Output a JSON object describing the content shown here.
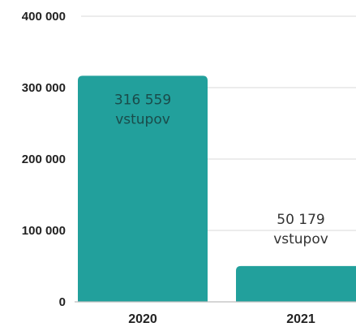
{
  "chart_data": {
    "type": "bar",
    "title": "",
    "xlabel": "",
    "ylabel": "",
    "categories": [
      "2020",
      "2021"
    ],
    "values": [
      316559,
      50179
    ],
    "data_labels": [
      {
        "value": "316 559",
        "unit": "vstupov"
      },
      {
        "value": "50 179",
        "unit": "vstupov"
      }
    ],
    "y_ticks": [
      "0",
      "100 000",
      "200 000",
      "300 000",
      "400 000"
    ],
    "y_tick_values": [
      0,
      100000,
      200000,
      300000,
      400000
    ],
    "ylim": [
      0,
      400000
    ],
    "grid": true,
    "legend": "none",
    "bar_color": "#22a09c",
    "label_inside_color": "#1a4b4a",
    "label_outside_color": "#333333"
  }
}
